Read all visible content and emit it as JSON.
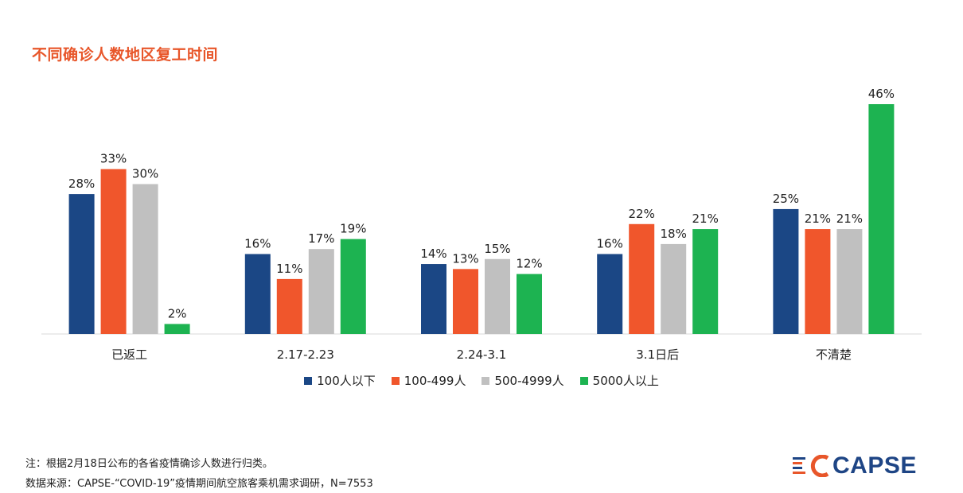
{
  "title": "不同确诊人数地区复工时间",
  "chart_data": {
    "type": "bar",
    "title": "不同确诊人数地区复工时间",
    "categories": [
      "已返工",
      "2.17-2.23",
      "2.24-3.1",
      "3.1日后",
      "不清楚"
    ],
    "series": [
      {
        "name": "100人以下",
        "color": "#1B4785",
        "values": [
          28,
          16,
          14,
          16,
          25
        ]
      },
      {
        "name": "100-499人",
        "color": "#F0562C",
        "values": [
          33,
          11,
          13,
          22,
          21
        ]
      },
      {
        "name": "500-4999人",
        "color": "#C0C0C0",
        "values": [
          30,
          17,
          15,
          18,
          21
        ]
      },
      {
        "name": "5000人以上",
        "color": "#1DB351",
        "values": [
          2,
          19,
          12,
          21,
          46
        ]
      }
    ],
    "value_suffix": "%",
    "ylim": [
      0,
      46
    ],
    "grid": false,
    "legend_position": "bottom"
  },
  "notes": {
    "note": "注：根据2月18日公布的各省疫情确诊人数进行归类。",
    "source": "数据来源：CAPSE-“COVID-19”疫情期间航空旅客乘机需求调研，N=7553"
  },
  "logo": {
    "text": "CAPSE",
    "color": "#1E4585",
    "accent": "#E8562A"
  }
}
